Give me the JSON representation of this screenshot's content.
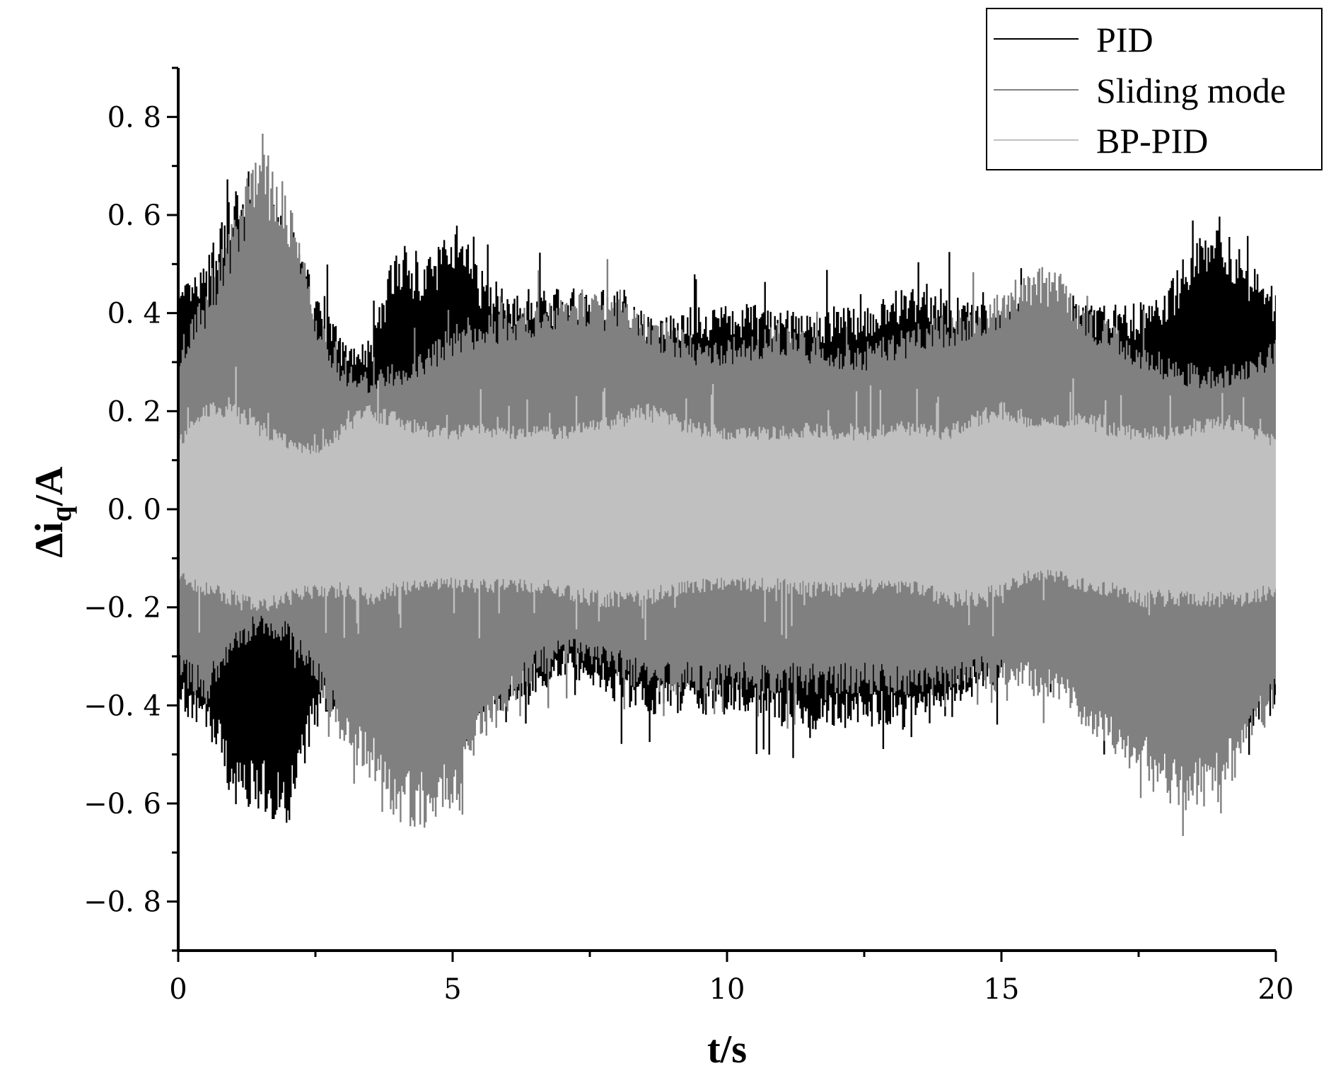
{
  "chart_data": {
    "type": "line",
    "title": "",
    "xlabel": "t/s",
    "ylabel": {
      "prefix": "Δi",
      "subscript": "q",
      "suffix": "/A"
    },
    "xlim": [
      0,
      20
    ],
    "ylim": [
      -0.9,
      0.9
    ],
    "xticks": [
      0,
      5,
      10,
      15,
      20
    ],
    "xtick_labels": [
      "0",
      "5",
      "10",
      "15",
      "20"
    ],
    "yticks": [
      0.8,
      0.6,
      0.4,
      0.2,
      0.0,
      -0.2,
      -0.4,
      -0.6,
      -0.8
    ],
    "ytick_labels": [
      "0. 8",
      "0. 6",
      "0. 4",
      "0. 2",
      "0. 0",
      "−0. 2",
      "−0. 4",
      "−0. 6",
      "−0. 8"
    ],
    "grid": false,
    "legend_position": "top-right",
    "x": [
      0,
      0.5,
      1,
      1.5,
      2,
      2.5,
      3,
      3.5,
      4,
      4.5,
      5,
      5.5,
      6,
      6.5,
      7,
      7.5,
      8,
      8.5,
      9,
      9.5,
      10,
      10.5,
      11,
      11.5,
      12,
      12.5,
      13,
      13.5,
      14,
      14.5,
      15,
      15.5,
      16,
      16.5,
      17,
      17.5,
      18,
      18.5,
      19,
      19.5,
      20
    ],
    "series": [
      {
        "name": "PID",
        "color": "#000000",
        "upper": [
          0.45,
          0.5,
          0.65,
          0.65,
          0.6,
          0.45,
          0.35,
          0.35,
          0.55,
          0.5,
          0.6,
          0.5,
          0.45,
          0.45,
          0.45,
          0.45,
          0.45,
          0.4,
          0.4,
          0.42,
          0.42,
          0.42,
          0.42,
          0.4,
          0.42,
          0.42,
          0.45,
          0.45,
          0.45,
          0.42,
          0.42,
          0.42,
          0.42,
          0.42,
          0.42,
          0.42,
          0.45,
          0.55,
          0.6,
          0.5,
          0.45
        ],
        "lower": [
          -0.42,
          -0.45,
          -0.6,
          -0.62,
          -0.65,
          -0.45,
          -0.4,
          -0.4,
          -0.45,
          -0.45,
          -0.45,
          -0.45,
          -0.4,
          -0.38,
          -0.35,
          -0.35,
          -0.4,
          -0.42,
          -0.42,
          -0.42,
          -0.42,
          -0.42,
          -0.45,
          -0.45,
          -0.45,
          -0.45,
          -0.45,
          -0.45,
          -0.42,
          -0.38,
          -0.35,
          -0.32,
          -0.32,
          -0.38,
          -0.42,
          -0.45,
          -0.45,
          -0.45,
          -0.45,
          -0.45,
          -0.42
        ]
      },
      {
        "name": "Sliding mode",
        "color": "#808080",
        "upper": [
          0.35,
          0.45,
          0.6,
          0.75,
          0.65,
          0.42,
          0.3,
          0.28,
          0.3,
          0.32,
          0.38,
          0.4,
          0.4,
          0.42,
          0.45,
          0.45,
          0.43,
          0.4,
          0.38,
          0.35,
          0.35,
          0.36,
          0.38,
          0.36,
          0.34,
          0.34,
          0.36,
          0.38,
          0.4,
          0.42,
          0.45,
          0.5,
          0.5,
          0.42,
          0.38,
          0.34,
          0.32,
          0.3,
          0.3,
          0.32,
          0.35
        ],
        "lower": [
          -0.35,
          -0.4,
          -0.3,
          -0.25,
          -0.28,
          -0.35,
          -0.5,
          -0.55,
          -0.65,
          -0.65,
          -0.62,
          -0.5,
          -0.42,
          -0.35,
          -0.32,
          -0.32,
          -0.34,
          -0.38,
          -0.38,
          -0.38,
          -0.38,
          -0.38,
          -0.38,
          -0.38,
          -0.38,
          -0.38,
          -0.38,
          -0.38,
          -0.38,
          -0.36,
          -0.36,
          -0.38,
          -0.4,
          -0.45,
          -0.5,
          -0.55,
          -0.6,
          -0.62,
          -0.6,
          -0.5,
          -0.4
        ]
      },
      {
        "name": "BP-PID",
        "color": "#c0c0c0",
        "upper": [
          0.15,
          0.22,
          0.22,
          0.18,
          0.15,
          0.13,
          0.18,
          0.22,
          0.2,
          0.18,
          0.17,
          0.18,
          0.17,
          0.17,
          0.17,
          0.18,
          0.2,
          0.22,
          0.2,
          0.18,
          0.17,
          0.17,
          0.17,
          0.18,
          0.17,
          0.17,
          0.18,
          0.18,
          0.17,
          0.2,
          0.22,
          0.2,
          0.2,
          0.2,
          0.18,
          0.17,
          0.17,
          0.18,
          0.2,
          0.18,
          0.15
        ],
        "lower": [
          -0.15,
          -0.18,
          -0.2,
          -0.22,
          -0.2,
          -0.18,
          -0.18,
          -0.2,
          -0.18,
          -0.17,
          -0.17,
          -0.17,
          -0.17,
          -0.17,
          -0.18,
          -0.2,
          -0.2,
          -0.2,
          -0.18,
          -0.17,
          -0.17,
          -0.17,
          -0.17,
          -0.18,
          -0.18,
          -0.17,
          -0.17,
          -0.18,
          -0.2,
          -0.2,
          -0.18,
          -0.15,
          -0.15,
          -0.17,
          -0.18,
          -0.2,
          -0.2,
          -0.2,
          -0.2,
          -0.2,
          -0.18
        ]
      }
    ]
  }
}
